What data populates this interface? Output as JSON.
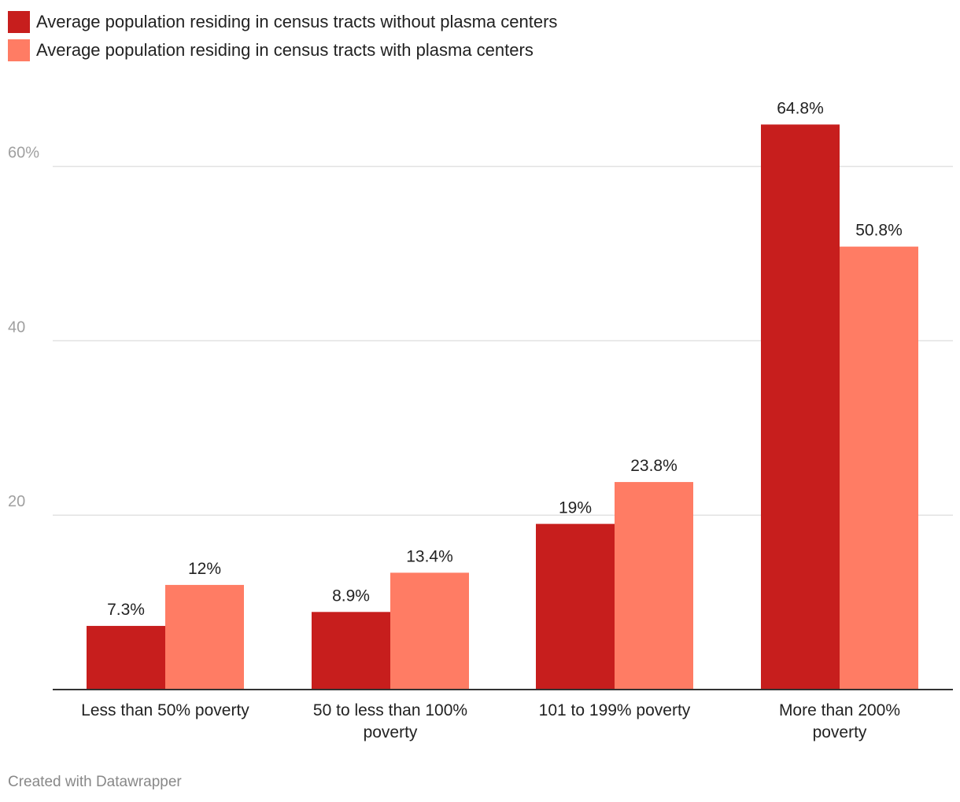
{
  "chart_data": {
    "type": "bar",
    "categories": [
      "Less than 50% poverty",
      "50 to less than 100% poverty",
      "101 to 199% poverty",
      "More than 200% poverty"
    ],
    "category_lines": [
      [
        "Less than 50% poverty"
      ],
      [
        "50 to less than 100%",
        "poverty"
      ],
      [
        "101 to 199% poverty"
      ],
      [
        "More than 200%",
        "poverty"
      ]
    ],
    "series": [
      {
        "name": "Average population residing in census tracts without plasma centers",
        "color": "#c71e1d",
        "values": [
          7.3,
          8.9,
          19,
          64.8
        ],
        "labels": [
          "7.3%",
          "8.9%",
          "19%",
          "64.8%"
        ]
      },
      {
        "name": "Average population residing in census tracts with plasma centers",
        "color": "#ff7c64",
        "values": [
          12,
          13.4,
          23.8,
          50.8
        ],
        "labels": [
          "12%",
          "13.4%",
          "23.8%",
          "50.8%"
        ]
      }
    ],
    "ylim": [
      0,
      70
    ],
    "yticks": [
      20,
      40,
      60
    ],
    "ytick_labels": [
      "20",
      "40",
      "60%"
    ],
    "grid": true,
    "legend": "top-left",
    "xlabel": "",
    "ylabel": ""
  },
  "footer": {
    "credit": "Created with Datawrapper"
  }
}
